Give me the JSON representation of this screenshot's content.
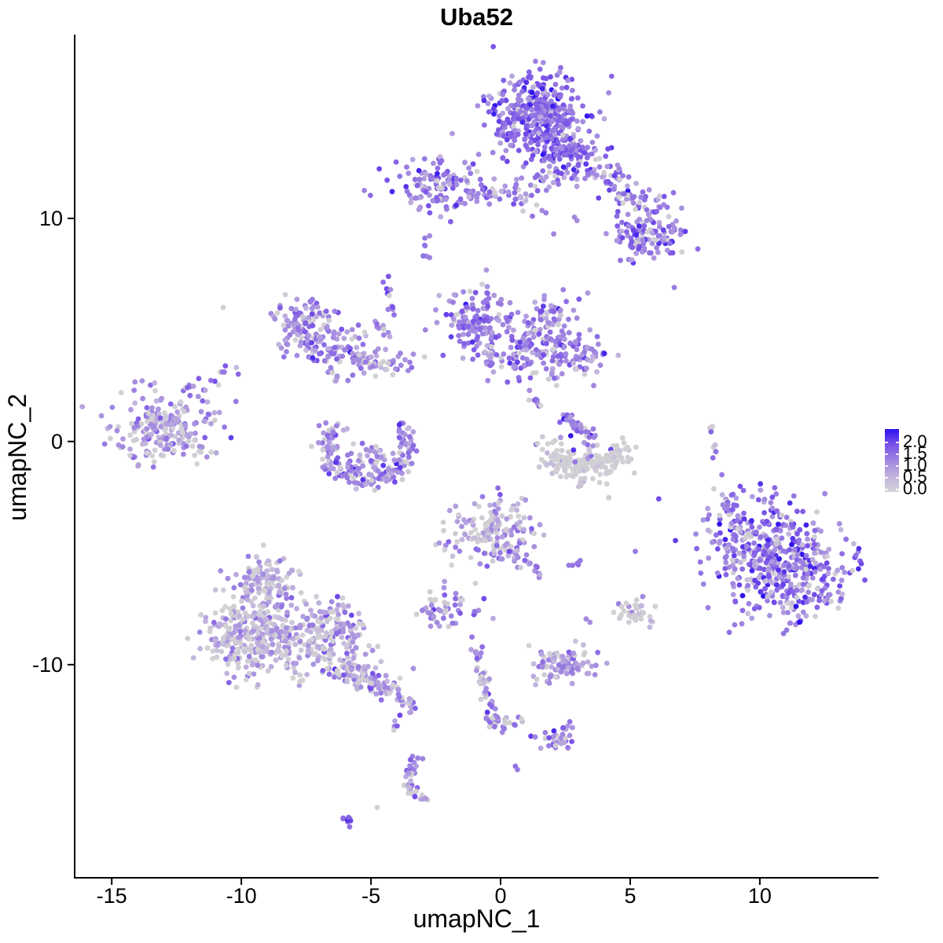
{
  "title": "Uba52",
  "colors": {
    "background": "#FFFFFF",
    "axis": "#000000",
    "text": "#000000",
    "low": "#D3D3D3",
    "high": "#2E12EF",
    "gradient_stops": [
      {
        "t": 0.0,
        "c": "#D3D3D3"
      },
      {
        "t": 0.25,
        "c": "#C1B2DE"
      },
      {
        "t": 0.5,
        "c": "#A086E0"
      },
      {
        "t": 0.75,
        "c": "#7A52E8"
      },
      {
        "t": 1.0,
        "c": "#2E12EF"
      }
    ]
  },
  "chart_data": {
    "type": "scatter",
    "title": "Uba52",
    "xlabel": "umapNC_1",
    "ylabel": "umapNC_2",
    "xlim": [
      -16.43,
      14.58
    ],
    "ylim": [
      -19.55,
      18.2
    ],
    "x_ticks": [
      -15,
      -10,
      -5,
      0,
      5,
      10
    ],
    "y_ticks": [
      10,
      0,
      -10
    ],
    "grid": false,
    "legend_position": "right",
    "colorbar": {
      "values": [
        2.0,
        1.5,
        1.0,
        0.5,
        0.0
      ],
      "value_range": [
        0.0,
        2.2
      ]
    },
    "point_radius_px": 3.4,
    "n_points_approx": 4080,
    "seed": 7,
    "note": "UMAP feature plot; expression t is normalized 0-1 (value = t * 2.2). Point cloud is described as generative clusters: gauss blobs, bands, arcs and explicit points in data coordinates.",
    "clusters": [
      {
        "name": "top-core",
        "kind": "gauss",
        "cx": 1.55,
        "cy": 14.55,
        "sx": 0.95,
        "sy": 0.95,
        "n": 400,
        "t": 0.62,
        "tsd": 0.17,
        "grey": 0.06
      },
      {
        "name": "top-lower",
        "kind": "gauss",
        "cx": 2.5,
        "cy": 12.9,
        "sx": 0.65,
        "sy": 0.6,
        "n": 100,
        "t": 0.6,
        "tsd": 0.16,
        "grey": 0.08
      },
      {
        "name": "top-tail",
        "kind": "band",
        "x1": 3.6,
        "y1": 12.3,
        "x2": 5.8,
        "y2": 10.3,
        "jitter": 0.4,
        "n": 80,
        "t": 0.55,
        "tsd": 0.18,
        "grey": 0.12
      },
      {
        "name": "top-right-lobe",
        "kind": "gauss",
        "cx": 5.7,
        "cy": 9.3,
        "sx": 0.75,
        "sy": 0.6,
        "n": 115,
        "t": 0.58,
        "tsd": 0.18,
        "grey": 0.1
      },
      {
        "name": "upper-left-core",
        "kind": "gauss",
        "cx": -2.35,
        "cy": 11.45,
        "sx": 0.8,
        "sy": 0.55,
        "n": 120,
        "t": 0.55,
        "tsd": 0.16,
        "grey": 0.1
      },
      {
        "name": "upper-left-band",
        "kind": "band",
        "x1": -1.2,
        "y1": 11.15,
        "x2": 0.95,
        "y2": 11.0,
        "jitter": 0.2,
        "n": 38,
        "t": 0.5,
        "tsd": 0.15,
        "grey": 0.15
      },
      {
        "name": "upper-mid-chain",
        "kind": "band",
        "x1": 0.6,
        "y1": 11.6,
        "x2": 1.2,
        "y2": 10.1,
        "jitter": 0.2,
        "n": 10,
        "t": 0.5,
        "tsd": 0.15,
        "grey": 0.15
      },
      {
        "name": "upper-link",
        "kind": "band",
        "x1": 1.1,
        "y1": 11.5,
        "x2": 2.1,
        "y2": 12.3,
        "jitter": 0.25,
        "n": 12,
        "t": 0.5,
        "tsd": 0.15,
        "grey": 0.15
      },
      {
        "name": "pair-left-top",
        "kind": "band",
        "x1": -2.95,
        "y1": 9.4,
        "x2": -2.8,
        "y2": 8.25,
        "jitter": 0.07,
        "n": 7,
        "t": 0.5,
        "tsd": 0.12,
        "grey": 0.1
      },
      {
        "name": "vstrip",
        "kind": "band",
        "x1": -4.45,
        "y1": 7.4,
        "x2": -4.15,
        "y2": 5.6,
        "jitter": 0.07,
        "n": 11,
        "t": 0.55,
        "tsd": 0.15,
        "grey": 0.08
      },
      {
        "name": "arcleft-a",
        "kind": "gauss",
        "cx": -7.6,
        "cy": 5.3,
        "sx": 0.55,
        "sy": 0.68,
        "n": 90,
        "t": 0.5,
        "tsd": 0.15,
        "grey": 0.12
      },
      {
        "name": "arcleft-b",
        "kind": "gauss",
        "cx": -6.7,
        "cy": 4.3,
        "sx": 0.7,
        "sy": 0.55,
        "n": 85,
        "t": 0.5,
        "tsd": 0.15,
        "grey": 0.12
      },
      {
        "name": "arcleft-arm",
        "kind": "band",
        "x1": -5.8,
        "y1": 3.75,
        "x2": -3.5,
        "y2": 3.6,
        "jitter": 0.25,
        "n": 55,
        "t": 0.47,
        "tsd": 0.15,
        "grey": 0.15
      },
      {
        "name": "arcleft-chain",
        "kind": "band",
        "x1": -4.7,
        "y1": 5.2,
        "x2": -4.1,
        "y2": 4.4,
        "jitter": 0.12,
        "n": 9,
        "t": 0.5,
        "tsd": 0.12,
        "grey": 0.1
      },
      {
        "name": "arcleft-lower-chain",
        "kind": "band",
        "x1": -6.5,
        "y1": 3.2,
        "x2": -5.9,
        "y2": 2.2,
        "jitter": 0.18,
        "n": 8,
        "t": 0.45,
        "tsd": 0.15,
        "grey": 0.2
      },
      {
        "name": "mid-core",
        "kind": "gauss",
        "cx": -0.9,
        "cy": 5.5,
        "sx": 0.6,
        "sy": 0.68,
        "n": 130,
        "t": 0.55,
        "tsd": 0.16,
        "grey": 0.1
      },
      {
        "name": "mid-upper",
        "kind": "gauss",
        "cx": 1.9,
        "cy": 5.6,
        "sx": 0.55,
        "sy": 0.5,
        "n": 60,
        "t": 0.52,
        "tsd": 0.16,
        "grey": 0.12
      },
      {
        "name": "mid-band",
        "kind": "gauss",
        "cx": 1.5,
        "cy": 4.0,
        "sx": 1.05,
        "sy": 0.55,
        "n": 140,
        "t": 0.5,
        "tsd": 0.16,
        "grey": 0.14
      },
      {
        "name": "mid-right",
        "kind": "gauss",
        "cx": 3.3,
        "cy": 3.85,
        "sx": 0.5,
        "sy": 0.45,
        "n": 35,
        "t": 0.5,
        "tsd": 0.16,
        "grey": 0.15
      },
      {
        "name": "mid-chain-down",
        "kind": "band",
        "x1": -0.5,
        "y1": 4.5,
        "x2": -0.3,
        "y2": 2.6,
        "jitter": 0.12,
        "n": 12,
        "t": 0.5,
        "tsd": 0.14,
        "grey": 0.12
      },
      {
        "name": "mid-diag-streak",
        "kind": "band",
        "x1": 0.4,
        "y1": 3.9,
        "x2": 1.5,
        "y2": 1.25,
        "jitter": 0.12,
        "n": 14,
        "t": 0.55,
        "tsd": 0.2,
        "grey": 0.08
      },
      {
        "name": "left-cluster",
        "kind": "gauss",
        "cx": -12.95,
        "cy": 0.65,
        "sx": 1.05,
        "sy": 0.8,
        "n": 230,
        "t": 0.42,
        "tsd": 0.16,
        "grey": 0.22
      },
      {
        "name": "left-tail",
        "kind": "band",
        "x1": -12.2,
        "y1": 2.0,
        "x2": -10.3,
        "y2": 3.3,
        "jitter": 0.15,
        "n": 18,
        "t": 0.5,
        "tsd": 0.14,
        "grey": 0.15
      },
      {
        "name": "u-arc",
        "kind": "arc",
        "cx": -5.15,
        "cy": -0.2,
        "rx": 1.55,
        "ry": 1.5,
        "a0": 140,
        "a1": 395,
        "jitter": 0.26,
        "n": 170,
        "t": 0.5,
        "tsd": 0.17,
        "grey": 0.16
      },
      {
        "name": "u-fill",
        "kind": "gauss",
        "cx": -5.1,
        "cy": -0.75,
        "sx": 0.7,
        "sy": 0.4,
        "n": 35,
        "t": 0.45,
        "tsd": 0.15,
        "grey": 0.2
      },
      {
        "name": "vstreak-mid",
        "kind": "band",
        "x1": 2.36,
        "y1": 1.25,
        "x2": 3.6,
        "y2": 0.0,
        "jitter": 0.13,
        "n": 36,
        "t": 0.55,
        "tsd": 0.18,
        "grey": 0.08
      },
      {
        "name": "greyblob-arc",
        "kind": "arc",
        "cx": 3.3,
        "cy": -0.55,
        "rx": 1.3,
        "ry": 0.75,
        "a0": 160,
        "a1": 380,
        "jitter": 0.3,
        "n": 100,
        "t": 0.06,
        "tsd": 0.08,
        "grey": 0.6
      },
      {
        "name": "greyblob-fill",
        "kind": "gauss",
        "cx": 3.3,
        "cy": -1.0,
        "sx": 0.75,
        "sy": 0.32,
        "n": 70,
        "t": 0.06,
        "tsd": 0.08,
        "grey": 0.6
      },
      {
        "name": "greyblob-purples",
        "kind": "gauss",
        "cx": 2.8,
        "cy": -0.5,
        "sx": 0.8,
        "sy": 0.5,
        "n": 12,
        "t": 0.55,
        "tsd": 0.15,
        "grey": 0
      },
      {
        "name": "right-vstreak",
        "kind": "band",
        "x1": 8.12,
        "y1": 0.77,
        "x2": 8.33,
        "y2": -1.0,
        "jitter": 0.07,
        "n": 9,
        "t": 0.45,
        "tsd": 0.18,
        "grey": 0.3
      },
      {
        "name": "right-big-a",
        "kind": "gauss",
        "cx": 10.0,
        "cy": -4.5,
        "sx": 1.3,
        "sy": 1.15,
        "n": 290,
        "t": 0.55,
        "tsd": 0.2,
        "grey": 0.1
      },
      {
        "name": "right-big-b",
        "kind": "gauss",
        "cx": 11.4,
        "cy": -6.1,
        "sx": 1.15,
        "sy": 1.0,
        "n": 240,
        "t": 0.55,
        "tsd": 0.2,
        "grey": 0.1
      },
      {
        "name": "right-wisp",
        "kind": "band",
        "x1": 8.3,
        "y1": -3.2,
        "x2": 9.2,
        "y2": -2.3,
        "jitter": 0.22,
        "n": 14,
        "t": 0.5,
        "tsd": 0.16,
        "grey": 0.15
      },
      {
        "name": "midlower-core",
        "kind": "gauss",
        "cx": -0.2,
        "cy": -4.15,
        "sx": 0.78,
        "sy": 0.82,
        "n": 160,
        "t": 0.38,
        "tsd": 0.18,
        "grey": 0.28
      },
      {
        "name": "midlower-tail",
        "kind": "band",
        "x1": 1.15,
        "y1": -5.4,
        "x2": 1.6,
        "y2": -6.1,
        "jitter": 0.1,
        "n": 12,
        "t": 0.55,
        "tsd": 0.15,
        "grey": 0.1
      },
      {
        "name": "midlower-left",
        "kind": "gauss",
        "cx": -2.0,
        "cy": -4.6,
        "sx": 0.3,
        "sy": 0.3,
        "n": 8,
        "t": 0.4,
        "tsd": 0.15,
        "grey": 0.3
      },
      {
        "name": "small-blob",
        "kind": "gauss",
        "cx": -2.4,
        "cy": -7.55,
        "sx": 0.4,
        "sy": 0.3,
        "n": 45,
        "t": 0.45,
        "tsd": 0.15,
        "grey": 0.25
      },
      {
        "name": "small-blob-chain",
        "kind": "band",
        "x1": -2.1,
        "y1": -6.3,
        "x2": -1.6,
        "y2": -7.2,
        "jitter": 0.1,
        "n": 7,
        "t": 0.5,
        "tsd": 0.12,
        "grey": 0.15
      },
      {
        "name": "small-pair",
        "kind": "gauss",
        "cx": -1.0,
        "cy": -7.7,
        "sx": 0.15,
        "sy": 0.1,
        "n": 4,
        "t": 0.55,
        "tsd": 0.1,
        "grey": 0
      },
      {
        "name": "pair-2",
        "kind": "gauss",
        "cx": 2.76,
        "cy": -5.5,
        "sx": 0.18,
        "sy": 0.1,
        "n": 5,
        "t": 0.6,
        "tsd": 0.12,
        "grey": 0
      },
      {
        "name": "grey-small",
        "kind": "gauss",
        "cx": 5.12,
        "cy": -7.7,
        "sx": 0.4,
        "sy": 0.33,
        "n": 36,
        "t": 0.28,
        "tsd": 0.22,
        "grey": 0.45
      },
      {
        "name": "dense-small",
        "kind": "gauss",
        "cx": 2.45,
        "cy": -10.0,
        "sx": 0.65,
        "sy": 0.35,
        "n": 100,
        "t": 0.42,
        "tsd": 0.15,
        "grey": 0.3
      },
      {
        "name": "chain-top-knot",
        "kind": "gauss",
        "cx": -0.9,
        "cy": -9.4,
        "sx": 0.15,
        "sy": 0.3,
        "n": 8,
        "t": 0.55,
        "tsd": 0.15,
        "grey": 0.1
      },
      {
        "name": "chain-desc",
        "kind": "band",
        "x1": -0.95,
        "y1": -9.55,
        "x2": -0.1,
        "y2": -12.9,
        "jitter": 0.13,
        "n": 40,
        "t": 0.5,
        "tsd": 0.18,
        "grey": 0.2
      },
      {
        "name": "chain-junction",
        "kind": "gauss",
        "cx": -0.2,
        "cy": -12.6,
        "sx": 0.25,
        "sy": 0.3,
        "n": 14,
        "t": 0.5,
        "tsd": 0.15,
        "grey": 0.25
      },
      {
        "name": "chain-branch",
        "kind": "band",
        "x1": 0.2,
        "y1": -12.4,
        "x2": 0.9,
        "y2": -12.55,
        "jitter": 0.1,
        "n": 7,
        "t": 0.45,
        "tsd": 0.15,
        "grey": 0.3
      },
      {
        "name": "chain-right-blob",
        "kind": "gauss",
        "cx": 2.3,
        "cy": -13.3,
        "sx": 0.45,
        "sy": 0.35,
        "n": 36,
        "t": 0.5,
        "tsd": 0.2,
        "grey": 0.2
      },
      {
        "name": "pairs-below",
        "kind": "gauss",
        "cx": -3.95,
        "cy": -12.8,
        "sx": 0.1,
        "sy": 0.25,
        "n": 5,
        "t": 0.5,
        "tsd": 0.12,
        "grey": 0.2
      },
      {
        "name": "crescent-a",
        "kind": "band",
        "x1": -3.2,
        "y1": -14.15,
        "x2": -3.6,
        "y2": -15.2,
        "jitter": 0.12,
        "n": 22,
        "t": 0.45,
        "tsd": 0.15,
        "grey": 0.25
      },
      {
        "name": "crescent-b",
        "kind": "band",
        "x1": -3.62,
        "y1": -15.3,
        "x2": -2.9,
        "y2": -16.15,
        "jitter": 0.12,
        "n": 24,
        "t": 0.45,
        "tsd": 0.15,
        "grey": 0.25
      },
      {
        "name": "bottom-streak",
        "kind": "band",
        "x1": -6.1,
        "y1": -16.75,
        "x2": -5.7,
        "y2": -17.25,
        "jitter": 0.06,
        "n": 9,
        "t": 0.6,
        "tsd": 0.12,
        "grey": 0.05
      },
      {
        "name": "bl-top",
        "kind": "gauss",
        "cx": -9.0,
        "cy": -6.3,
        "sx": 0.65,
        "sy": 0.6,
        "n": 130,
        "t": 0.33,
        "tsd": 0.17,
        "grey": 0.3
      },
      {
        "name": "bl-left",
        "kind": "gauss",
        "cx": -9.6,
        "cy": -8.8,
        "sx": 0.8,
        "sy": 0.8,
        "n": 260,
        "t": 0.33,
        "tsd": 0.17,
        "grey": 0.32
      },
      {
        "name": "bl-right",
        "kind": "gauss",
        "cx": -7.0,
        "cy": -8.7,
        "sx": 0.95,
        "sy": 0.85,
        "n": 230,
        "t": 0.35,
        "tsd": 0.17,
        "grey": 0.3
      },
      {
        "name": "bl-west",
        "kind": "gauss",
        "cx": -10.6,
        "cy": -8.3,
        "sx": 0.35,
        "sy": 0.6,
        "n": 20,
        "t": 0.2,
        "tsd": 0.15,
        "grey": 0.5
      },
      {
        "name": "bl-tail",
        "kind": "band",
        "x1": -6.3,
        "y1": -10.1,
        "x2": -4.0,
        "y2": -11.2,
        "jitter": 0.3,
        "n": 110,
        "t": 0.4,
        "tsd": 0.17,
        "grey": 0.25
      },
      {
        "name": "bl-tip",
        "kind": "band",
        "x1": -4.0,
        "y1": -11.4,
        "x2": -3.4,
        "y2": -11.9,
        "jitter": 0.15,
        "n": 18,
        "t": 0.42,
        "tsd": 0.15,
        "grey": 0.25
      },
      {
        "name": "singles",
        "kind": "points",
        "pts": [
          [
            -10.7,
            6.0,
            0.03
          ],
          [
            6.7,
            6.9,
            0.55
          ],
          [
            1.6,
            10.35,
            0.5
          ],
          [
            1.75,
            10.25,
            0.55
          ],
          [
            2.85,
            10.05,
            0.5
          ],
          [
            2.95,
            9.9,
            0.45
          ],
          [
            2.05,
            9.3,
            0.5
          ],
          [
            -2.9,
            5.0,
            0.5
          ],
          [
            -2.5,
            5.9,
            0.45
          ],
          [
            0.57,
            -14.55,
            0.6
          ],
          [
            0.65,
            -14.7,
            0.55
          ],
          [
            -4.76,
            -16.4,
            0.02
          ],
          [
            3.3,
            -7.95,
            0.5
          ],
          [
            3.45,
            -8.1,
            0.45
          ]
        ]
      }
    ]
  }
}
